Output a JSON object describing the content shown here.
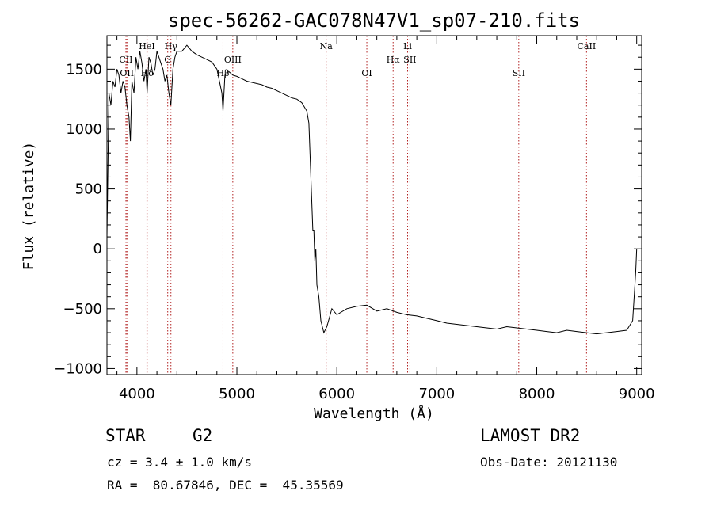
{
  "chart_data": {
    "type": "line",
    "title": "spec-56262-GAC078N47V1_sp07-210.fits",
    "xlabel": "Wavelength (Å)",
    "ylabel": "Flux (relative)",
    "xlim": [
      3700,
      9050
    ],
    "ylim": [
      -1050,
      1780
    ],
    "xticks": [
      4000,
      5000,
      6000,
      7000,
      8000,
      9000
    ],
    "yticks": [
      -1000,
      -500,
      0,
      500,
      1000,
      1500
    ],
    "grid": false,
    "series": [
      {
        "x": [
          3700,
          3720,
          3740,
          3760,
          3780,
          3800,
          3820,
          3840,
          3860,
          3880,
          3900,
          3920,
          3935,
          3950,
          3970,
          3990,
          4010,
          4030,
          4050,
          4070,
          4090,
          4102,
          4120,
          4140,
          4160,
          4180,
          4200,
          4220,
          4240,
          4260,
          4280,
          4300,
          4320,
          4340,
          4360,
          4380,
          4400,
          4450,
          4500,
          4550,
          4600,
          4650,
          4700,
          4750,
          4800,
          4850,
          4861,
          4880,
          4920,
          4960,
          5000,
          5050,
          5100,
          5150,
          5200,
          5250,
          5300,
          5350,
          5400,
          5450,
          5500,
          5550,
          5600,
          5650,
          5700,
          5720,
          5740,
          5760,
          5770,
          5780,
          5790,
          5800,
          5820,
          5840,
          5870,
          5900,
          5950,
          6000,
          6100,
          6200,
          6300,
          6400,
          6500,
          6600,
          6700,
          6800,
          6900,
          7000,
          7100,
          7200,
          7300,
          7400,
          7500,
          7600,
          7700,
          7800,
          7900,
          8000,
          8100,
          8200,
          8300,
          8400,
          8500,
          8600,
          8700,
          8800,
          8900,
          8960,
          8990,
          9000
        ],
        "values": [
          100,
          1300,
          1200,
          1400,
          1350,
          1500,
          1450,
          1300,
          1400,
          1350,
          1200,
          1100,
          900,
          1400,
          1300,
          1600,
          1500,
          1650,
          1550,
          1400,
          1500,
          1300,
          1600,
          1550,
          1450,
          1500,
          1650,
          1600,
          1550,
          1500,
          1400,
          1450,
          1300,
          1200,
          1500,
          1600,
          1650,
          1650,
          1700,
          1650,
          1620,
          1600,
          1580,
          1560,
          1500,
          1300,
          1150,
          1450,
          1480,
          1450,
          1440,
          1420,
          1400,
          1390,
          1380,
          1370,
          1350,
          1340,
          1320,
          1300,
          1280,
          1260,
          1250,
          1220,
          1150,
          1050,
          600,
          150,
          150,
          -100,
          0,
          -300,
          -400,
          -600,
          -700,
          -650,
          -500,
          -550,
          -500,
          -480,
          -470,
          -520,
          -500,
          -530,
          -550,
          -560,
          -580,
          -600,
          -620,
          -630,
          -640,
          -650,
          -660,
          -670,
          -650,
          -660,
          -670,
          -680,
          -690,
          -700,
          -680,
          -690,
          -700,
          -710,
          -700,
          -690,
          -680,
          -600,
          -200,
          0
        ]
      }
    ],
    "lines": [
      {
        "name": "CII",
        "x": 3890,
        "row": 2
      },
      {
        "name": "OII",
        "x": 3900,
        "row": 3
      },
      {
        "name": "HeI",
        "x": 4100,
        "row": 1
      },
      {
        "name": "Hδ",
        "x": 4102,
        "row": 3
      },
      {
        "name": "Hγ",
        "x": 4340,
        "row": 1
      },
      {
        "name": "G",
        "x": 4308,
        "row": 2
      },
      {
        "name": "Hβ",
        "x": 4861,
        "row": 3
      },
      {
        "name": "OIII",
        "x": 4959,
        "row": 2
      },
      {
        "name": "Na",
        "x": 5893,
        "row": 1
      },
      {
        "name": "OI",
        "x": 6300,
        "row": 3
      },
      {
        "name": "Hα",
        "x": 6563,
        "row": 2
      },
      {
        "name": "Li",
        "x": 6708,
        "row": 1
      },
      {
        "name": "SII",
        "x": 6731,
        "row": 2
      },
      {
        "name": "SII",
        "x": 7820,
        "row": 3
      },
      {
        "name": "CaII",
        "x": 8498,
        "row": 1
      }
    ]
  },
  "info": {
    "object_class": "STAR",
    "subclass": "G2",
    "survey": "LAMOST DR2",
    "redshift": "cz = 3.4 ± 1.0 km/s",
    "obs_date": "Obs-Date: 20121130",
    "coords": "RA =  80.67846, DEC =  45.35569"
  },
  "colors": {
    "line": "#000000",
    "marker_lines": "#b22222"
  }
}
